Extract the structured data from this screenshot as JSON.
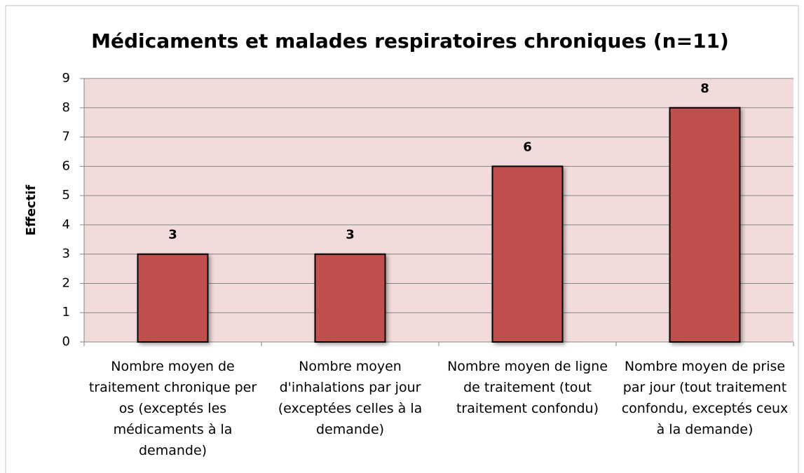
{
  "chart_data": {
    "type": "bar",
    "title": "Médicaments et malades respiratoires chroniques (n=11)",
    "ylabel": "Effectif",
    "categories": [
      "Nombre moyen de traitement chronique per os (exceptés les médicaments à la demande)",
      "Nombre moyen d'inhalations par jour (exceptées celles à la demande)",
      "Nombre moyen de ligne de traitement (tout traitement confondu)",
      "Nombre moyen de prise par jour (tout traitement confondu, exceptés ceux à la demande)"
    ],
    "values": [
      3,
      3,
      6,
      8
    ],
    "color": "#c0504d",
    "plot_background": "#f2dcdb",
    "ylim": [
      0,
      9
    ],
    "yticks": [
      0,
      1,
      2,
      3,
      4,
      5,
      6,
      7,
      8,
      9
    ],
    "grid": true
  }
}
